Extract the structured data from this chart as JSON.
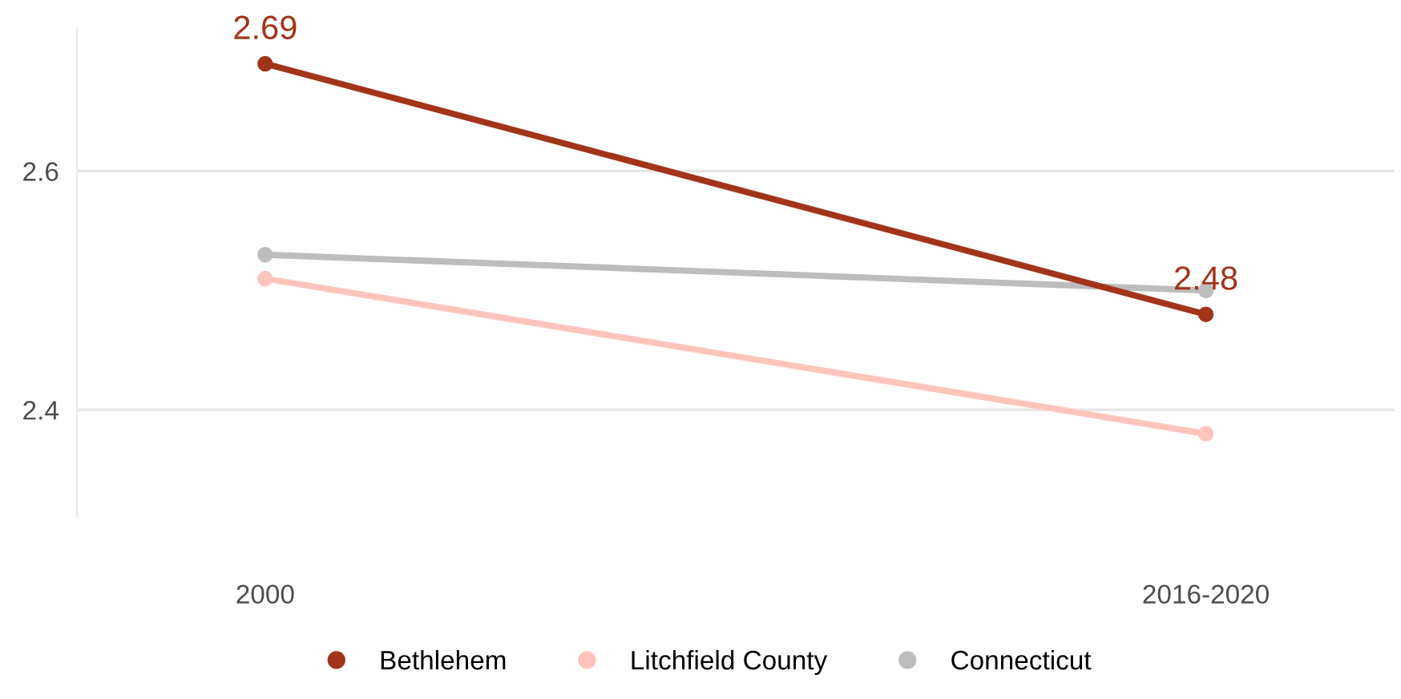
{
  "chart_data": {
    "type": "line",
    "categories": [
      "2000",
      "2016-2020"
    ],
    "series": [
      {
        "name": "Bethlehem",
        "color": "#a23419",
        "values": [
          2.69,
          2.48
        ],
        "value_labels": [
          "2.69",
          "2.48"
        ]
      },
      {
        "name": "Litchfield County",
        "color": "#ffc4bc",
        "values": [
          2.51,
          2.38
        ]
      },
      {
        "name": "Connecticut",
        "color": "#bdbdbd",
        "values": [
          2.53,
          2.5
        ]
      }
    ],
    "ylim": [
      2.31,
      2.72
    ],
    "yticks": [
      2.4,
      2.6
    ],
    "grid": "y",
    "legend": "bottom",
    "marker": "circle",
    "line_style": "solid"
  }
}
